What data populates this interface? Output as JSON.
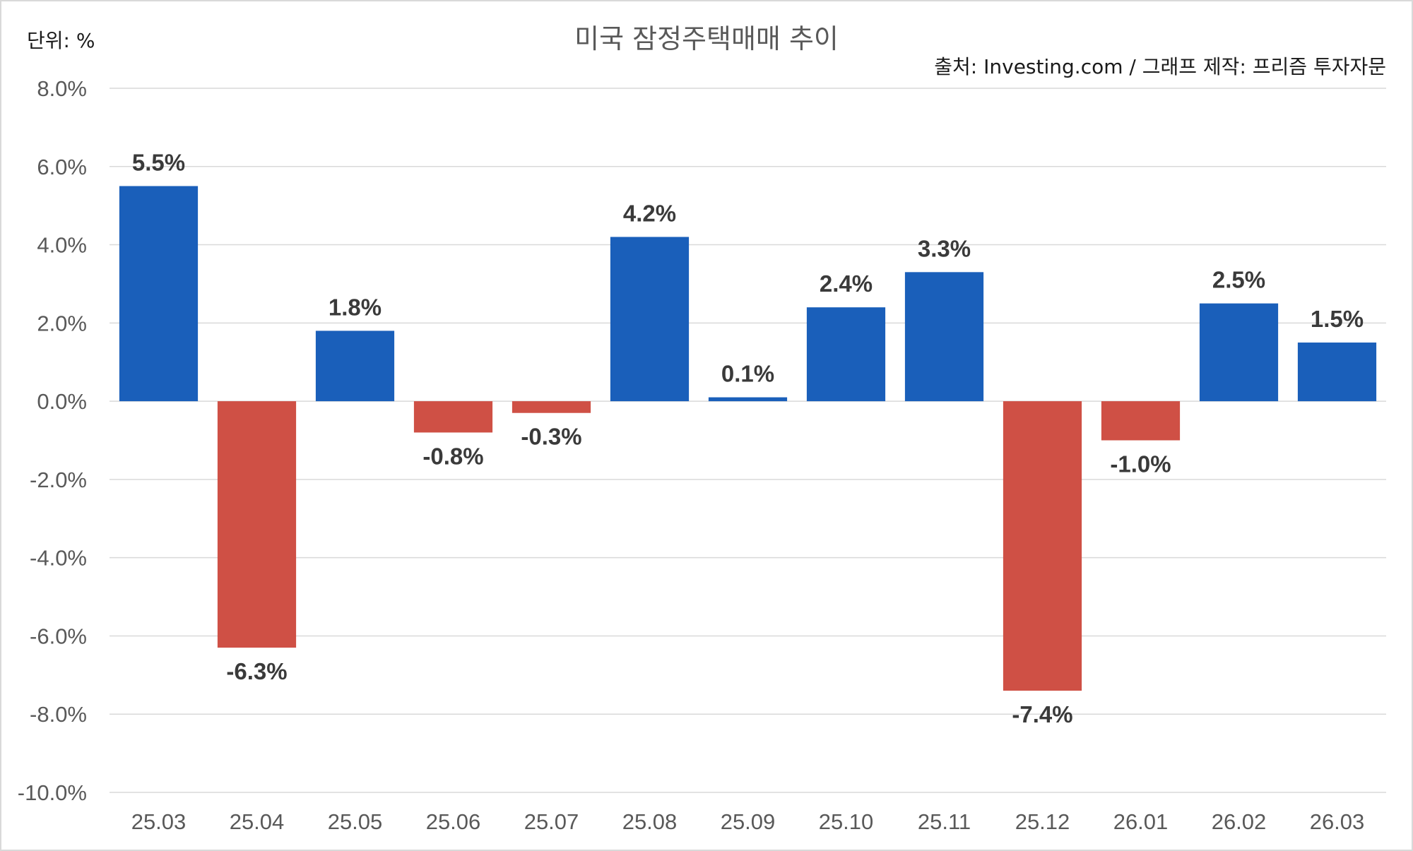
{
  "chart_data": {
    "type": "bar",
    "title": "미국 잠정주택매매 추이",
    "unit_note": "단위: %",
    "source_note": "출처: Investing.com / 그래프 제작: 프리즘 투자자문",
    "categories": [
      "25.03",
      "25.04",
      "25.05",
      "25.06",
      "25.07",
      "25.08",
      "25.09",
      "25.10",
      "25.11",
      "25.12",
      "26.01",
      "26.02",
      "26.03"
    ],
    "values": [
      5.5,
      -6.3,
      1.8,
      -0.8,
      -0.3,
      4.2,
      0.1,
      2.4,
      3.3,
      -7.4,
      -1.0,
      2.5,
      1.5
    ],
    "data_labels": [
      "5.5%",
      "-6.3%",
      "1.8%",
      "-0.8%",
      "-0.3%",
      "4.2%",
      "0.1%",
      "2.4%",
      "3.3%",
      "-7.4%",
      "-1.0%",
      "2.5%",
      "1.5%"
    ],
    "yticks": [
      8,
      6,
      4,
      2,
      0,
      -2,
      -4,
      -6,
      -8,
      -10
    ],
    "ytick_labels": [
      "8.0%",
      "6.0%",
      "4.0%",
      "2.0%",
      "0.0%",
      "-2.0%",
      "-4.0%",
      "-6.0%",
      "-8.0%",
      "-10.0%"
    ],
    "ylim": [
      -10,
      8
    ],
    "grid": true,
    "legend": "none",
    "colors": {
      "positive": "#1a5fba",
      "negative": "#cf5045"
    }
  }
}
